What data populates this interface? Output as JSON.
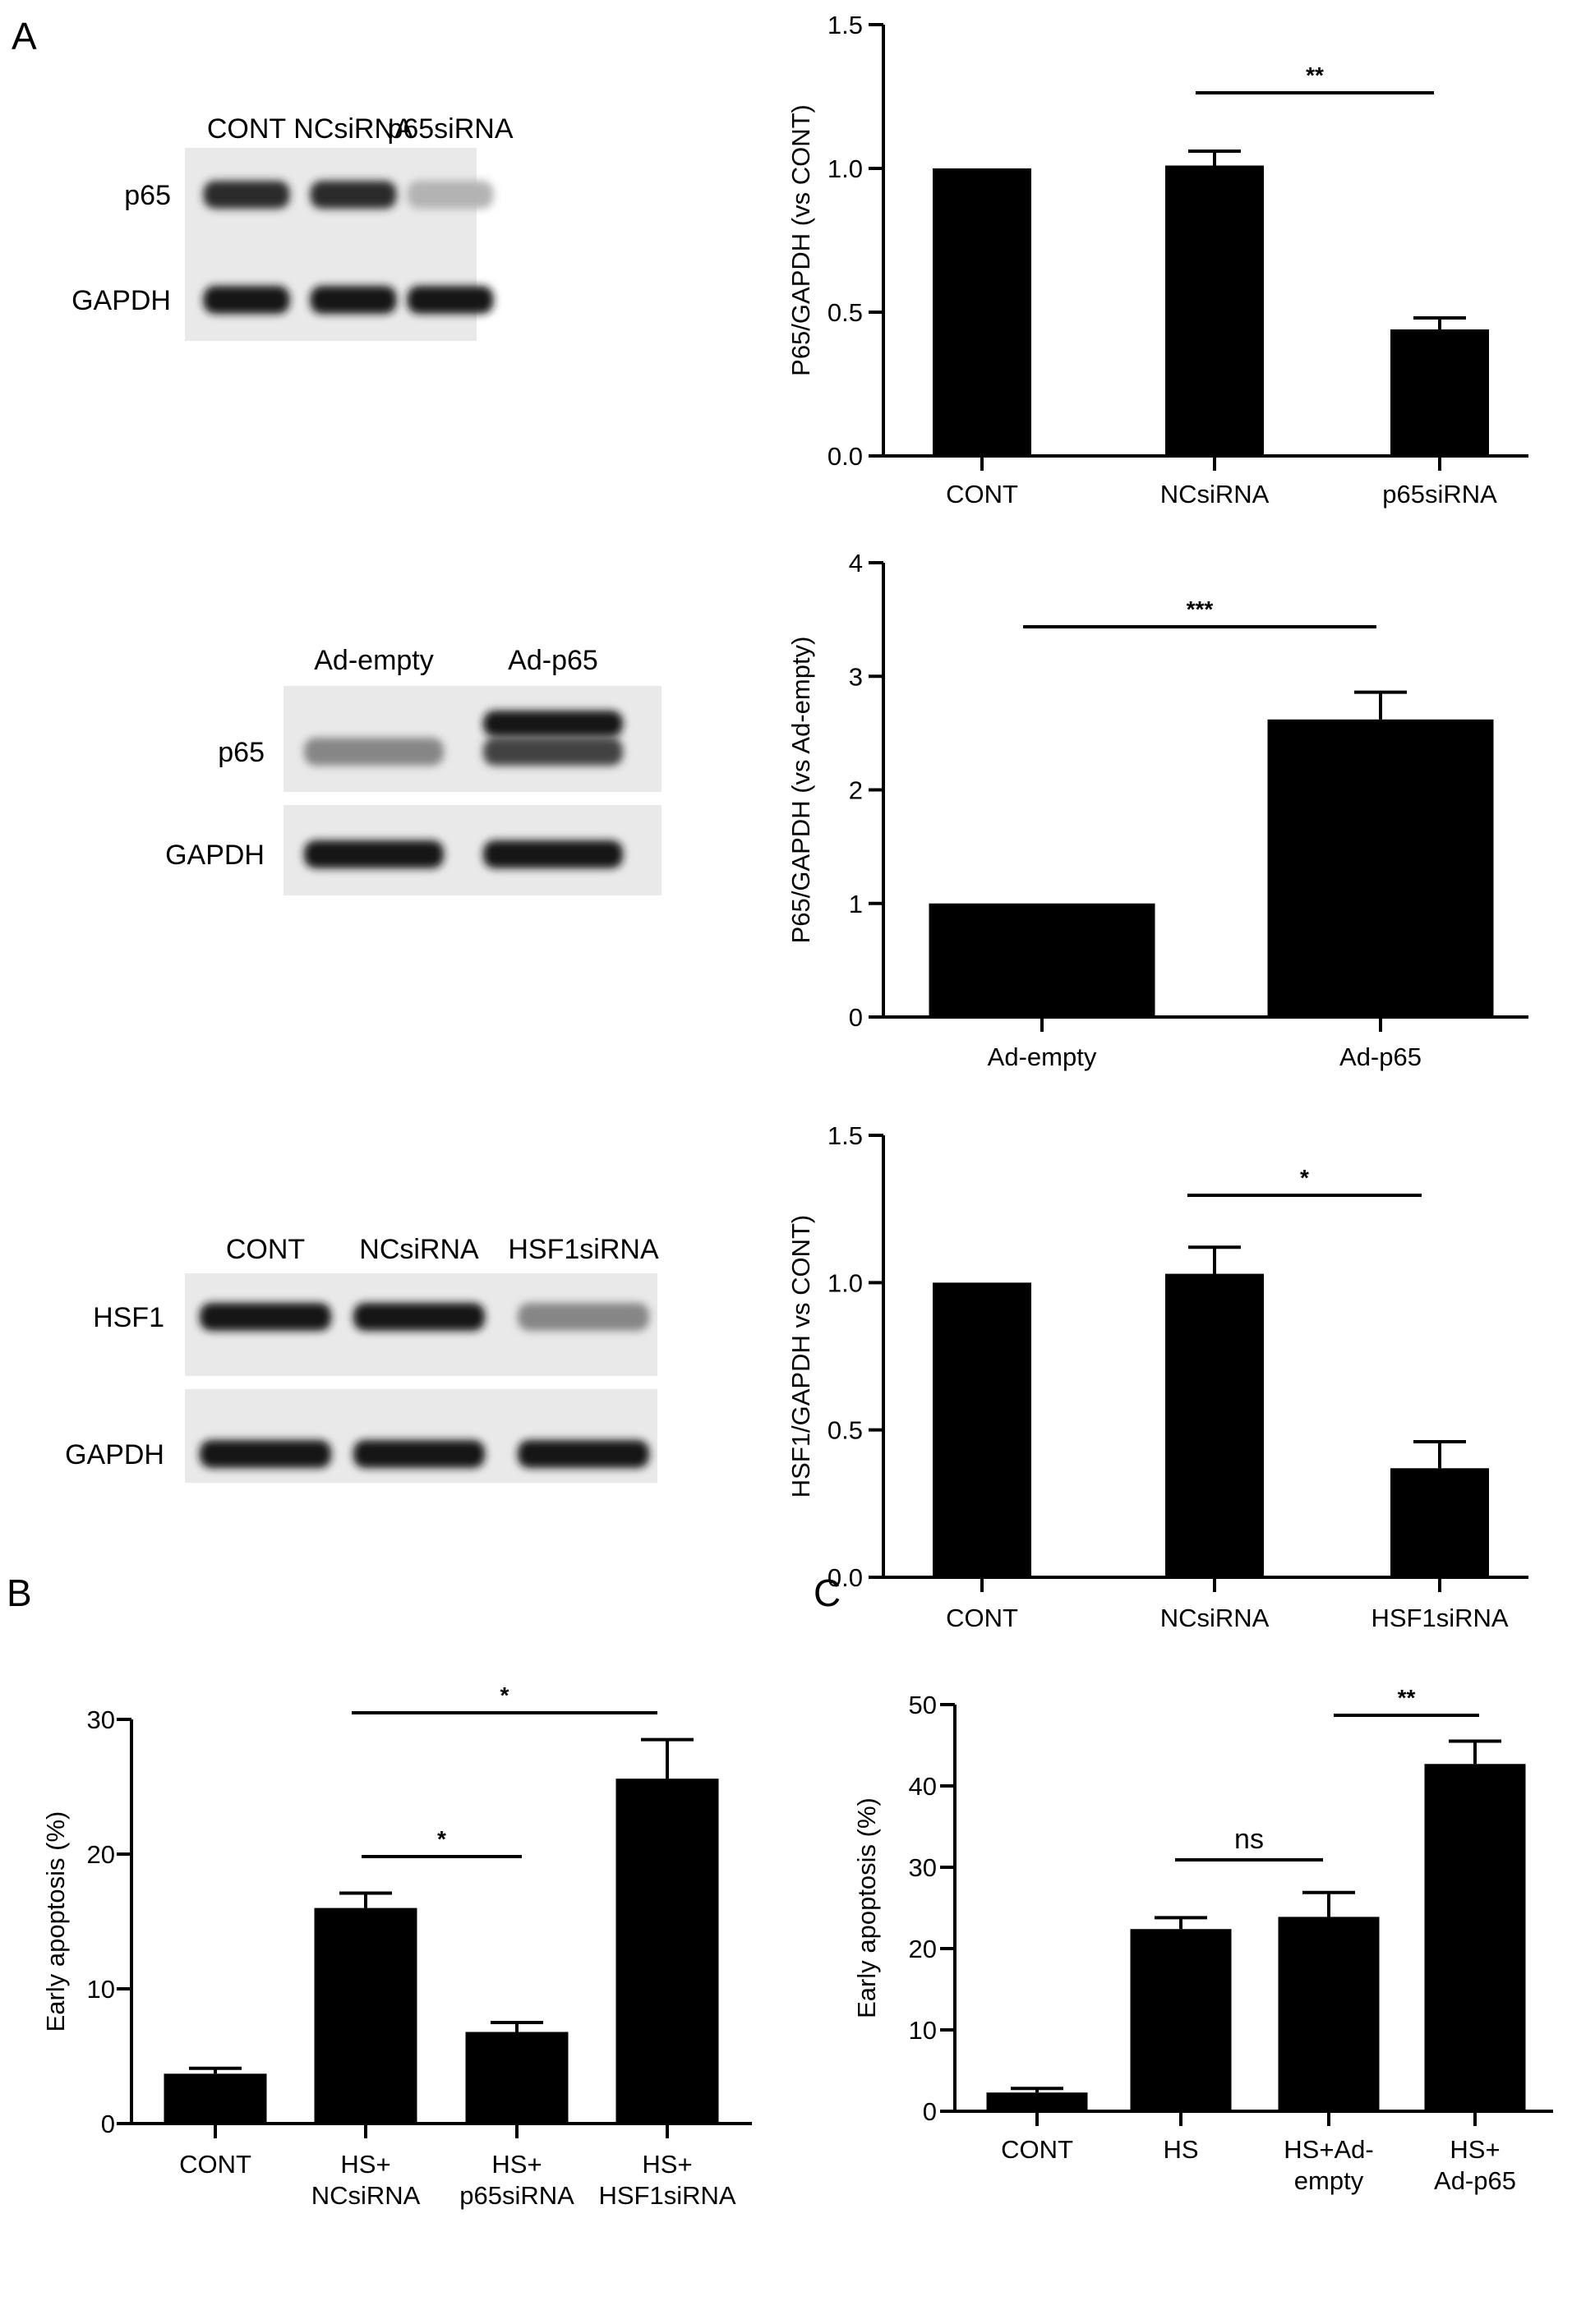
{
  "panel_letters": {
    "a": "A",
    "b": "B",
    "c": "C"
  },
  "blots": [
    {
      "lanes": [
        "CONT",
        "NCsiRNA",
        "p65siRNA"
      ],
      "rows": [
        "p65",
        "GAPDH"
      ],
      "intensity": [
        [
          0.85,
          0.85,
          0.25
        ],
        [
          0.95,
          0.95,
          0.95
        ]
      ],
      "upper_band": [
        0,
        0,
        0
      ]
    },
    {
      "lanes": [
        "Ad-empty",
        "Ad-p65"
      ],
      "rows": [
        "p65",
        "GAPDH"
      ],
      "intensity": [
        [
          0.45,
          0.75
        ],
        [
          0.95,
          0.95
        ]
      ],
      "upper_band": [
        0,
        1
      ]
    },
    {
      "lanes": [
        "CONT",
        "NCsiRNA",
        "HSF1siRNA"
      ],
      "rows": [
        "HSF1",
        "GAPDH"
      ],
      "intensity": [
        [
          0.95,
          0.95,
          0.45
        ],
        [
          0.95,
          0.95,
          0.95
        ]
      ],
      "upper_band": [
        0,
        0,
        0
      ]
    }
  ],
  "chart_data": [
    {
      "type": "bar",
      "categories": [
        "CONT",
        "NCsiRNA",
        "p65siRNA"
      ],
      "values": [
        1.0,
        1.01,
        0.44
      ],
      "errors": [
        0,
        0.05,
        0.04
      ],
      "ylabel": "P65/GAPDH (vs CONT)",
      "ylim": [
        0,
        1.5
      ],
      "yticks": [
        "0.0",
        "0.5",
        "1.0",
        "1.5"
      ],
      "significance": [
        {
          "from": 1,
          "to": 2,
          "label": "**"
        }
      ]
    },
    {
      "type": "bar",
      "categories": [
        "Ad-empty",
        "Ad-p65"
      ],
      "values": [
        1.0,
        2.62
      ],
      "errors": [
        0,
        0.24
      ],
      "ylabel": "P65/GAPDH (vs Ad-empty)",
      "ylim": [
        0,
        4
      ],
      "yticks": [
        "0",
        "1",
        "2",
        "3",
        "4"
      ],
      "significance": [
        {
          "from": 0,
          "to": 1,
          "label": "***"
        }
      ]
    },
    {
      "type": "bar",
      "categories": [
        "CONT",
        "NCsiRNA",
        "HSF1siRNA"
      ],
      "values": [
        1.0,
        1.03,
        0.37
      ],
      "errors": [
        0,
        0.09,
        0.09
      ],
      "ylabel": "HSF1/GAPDH vs CONT)",
      "ylim": [
        0,
        1.5
      ],
      "yticks": [
        "0.0",
        "0.5",
        "1.0",
        "1.5"
      ],
      "significance": [
        {
          "from": 1,
          "to": 2,
          "label": "*"
        }
      ]
    },
    {
      "type": "bar",
      "categories": [
        [
          "CONT"
        ],
        [
          "HS+",
          "NCsiRNA"
        ],
        [
          "HS+",
          "p65siRNA"
        ],
        [
          "HS+",
          "HSF1siRNA"
        ]
      ],
      "values": [
        3.7,
        16.0,
        6.8,
        25.6
      ],
      "errors": [
        0.4,
        1.1,
        0.7,
        2.9
      ],
      "ylabel": "Early apoptosis (%)",
      "ylim": [
        0,
        30
      ],
      "yticks": [
        "0",
        "10",
        "20",
        "30"
      ],
      "significance": [
        {
          "from": 1,
          "to": 2,
          "label": "*"
        },
        {
          "from": 1,
          "to": 3,
          "label": "*"
        }
      ]
    },
    {
      "type": "bar",
      "categories": [
        [
          "CONT"
        ],
        [
          "HS"
        ],
        [
          "HS+Ad-",
          "empty"
        ],
        [
          "HS+",
          "Ad-p65"
        ]
      ],
      "values": [
        2.3,
        22.4,
        23.9,
        42.7
      ],
      "errors": [
        0.5,
        1.4,
        3.0,
        2.8
      ],
      "ylabel": "Early apoptosis (%)",
      "ylim": [
        0,
        50
      ],
      "yticks": [
        "0",
        "10",
        "20",
        "30",
        "40",
        "50"
      ],
      "significance": [
        {
          "from": 1,
          "to": 2,
          "label": "ns"
        },
        {
          "from": 2,
          "to": 3,
          "label": "**"
        }
      ]
    }
  ]
}
